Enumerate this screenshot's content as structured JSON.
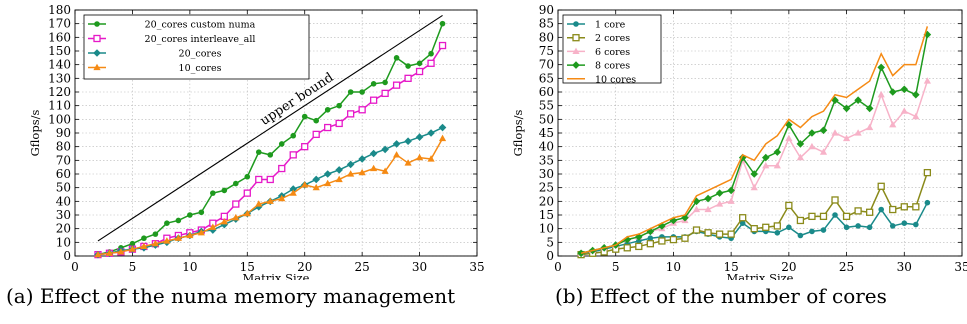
{
  "chart_data": [
    {
      "type": "line",
      "caption": "(a) Effect of the numa memory management",
      "xlabel": "Matrix Size",
      "ylabel": "Gflops/s",
      "xlim": [
        0,
        35
      ],
      "ylim": [
        0,
        180
      ],
      "xticks": [
        0,
        5,
        10,
        15,
        20,
        25,
        30,
        35
      ],
      "yticks": [
        0,
        10,
        20,
        30,
        40,
        50,
        60,
        70,
        80,
        90,
        100,
        110,
        120,
        130,
        140,
        150,
        160,
        170,
        180
      ],
      "grid": true,
      "legend": "top-left",
      "annotation": {
        "text": "upper bound",
        "line": [
          [
            2,
            11
          ],
          [
            32,
            176
          ]
        ]
      },
      "x": [
        2,
        3,
        4,
        5,
        6,
        7,
        8,
        9,
        10,
        11,
        12,
        13,
        14,
        15,
        16,
        17,
        18,
        19,
        20,
        21,
        22,
        23,
        24,
        25,
        26,
        27,
        28,
        29,
        30,
        31,
        32
      ],
      "series": [
        {
          "name": "20_cores custom numa",
          "color": "#1e9a1e",
          "marker": "circle",
          "values": [
            1,
            3,
            6,
            9,
            13,
            16,
            24,
            26,
            30,
            32,
            46,
            48,
            53,
            58,
            76,
            74,
            82,
            88,
            102,
            99,
            107,
            110,
            120,
            120,
            126,
            127,
            145,
            139,
            141,
            148,
            170
          ]
        },
        {
          "name": "20_cores interleave_all",
          "color": "#e619c8",
          "marker": "square",
          "values": [
            1,
            2,
            3,
            5,
            7,
            9,
            13,
            15,
            17,
            19,
            24,
            29,
            38,
            46,
            56,
            56,
            64,
            74,
            80,
            89,
            94,
            97,
            104,
            107,
            114,
            119,
            125,
            130,
            135,
            141,
            154
          ]
        },
        {
          "name": "20_cores",
          "color": "#1a8a8a",
          "marker": "diamond",
          "values": [
            1,
            2,
            4,
            5,
            6,
            8,
            10,
            13,
            15,
            18,
            19,
            23,
            27,
            31,
            36,
            40,
            44,
            49,
            52,
            56,
            60,
            63,
            67,
            71,
            75,
            78,
            82,
            84,
            87,
            90,
            94
          ]
        },
        {
          "name": "10_cores",
          "color": "#f58a14",
          "marker": "triangle",
          "values": [
            1,
            2,
            3,
            5,
            7,
            9,
            11,
            13,
            15,
            17,
            21,
            25,
            28,
            31,
            38,
            40,
            42,
            46,
            52,
            50,
            53,
            56,
            60,
            61,
            64,
            62,
            74,
            68,
            72,
            71,
            86
          ]
        }
      ]
    },
    {
      "type": "line",
      "caption": "(b) Effect of the number of cores",
      "xlabel": "Matrix Size",
      "ylabel": "Gflops/s",
      "xlim": [
        0,
        35
      ],
      "ylim": [
        0,
        90
      ],
      "xticks": [
        0,
        5,
        10,
        15,
        20,
        25,
        30,
        35
      ],
      "yticks": [
        0,
        5,
        10,
        15,
        20,
        25,
        30,
        35,
        40,
        45,
        50,
        55,
        60,
        65,
        70,
        75,
        80,
        85,
        90
      ],
      "grid": true,
      "legend": "top-left",
      "x": [
        2,
        3,
        4,
        5,
        6,
        7,
        8,
        9,
        10,
        11,
        12,
        13,
        14,
        15,
        16,
        17,
        18,
        19,
        20,
        21,
        22,
        23,
        24,
        25,
        26,
        27,
        28,
        29,
        30,
        31,
        32
      ],
      "series": [
        {
          "name": "1 core",
          "color": "#1a8a8a",
          "marker": "circle",
          "values": [
            1,
            1.5,
            2.5,
            3.5,
            4.5,
            5.5,
            6.5,
            7,
            7,
            7,
            9,
            8,
            7,
            6.5,
            12,
            9,
            9,
            8.5,
            10.5,
            7.5,
            9,
            9.5,
            15,
            10.5,
            11,
            10.5,
            17,
            11,
            12,
            11.5,
            19.5
          ]
        },
        {
          "name": "2 cores",
          "color": "#8a8a1a",
          "marker": "square",
          "values": [
            0.5,
            1,
            1.5,
            2.5,
            3,
            3.5,
            4.5,
            5.5,
            6,
            6.5,
            9.5,
            8.5,
            8,
            8,
            14,
            10,
            10.5,
            11,
            18.5,
            13,
            14.5,
            14.5,
            20.5,
            14.5,
            16.5,
            16,
            25.5,
            17,
            18,
            18,
            30.5
          ]
        },
        {
          "name": "6 cores",
          "color": "#f7b2c8",
          "marker": "triangle",
          "values": [
            1,
            2,
            3,
            4,
            6,
            7,
            9,
            10,
            12,
            13,
            17,
            17,
            19,
            20,
            35,
            25,
            33,
            33,
            43,
            36,
            40,
            38,
            45,
            43,
            45,
            47,
            59,
            48,
            53,
            51,
            64
          ]
        },
        {
          "name": "8 cores",
          "color": "#1e9a1e",
          "marker": "diamond",
          "values": [
            1,
            2,
            3,
            4,
            6,
            7,
            9,
            11,
            13,
            14,
            20,
            21,
            23,
            24,
            36,
            30,
            36,
            38,
            48,
            41,
            45,
            46,
            57,
            54,
            57,
            54,
            69,
            60,
            61,
            59,
            81
          ]
        },
        {
          "name": "10 cores",
          "color": "#f58a14",
          "marker": "none",
          "values": [
            1,
            2,
            3,
            4,
            7,
            8,
            10,
            12,
            14,
            15,
            22,
            24,
            26,
            28,
            37,
            35,
            41,
            44,
            50,
            47,
            51,
            53,
            59,
            58,
            61,
            64,
            74,
            66,
            70,
            70,
            84
          ]
        }
      ]
    }
  ]
}
